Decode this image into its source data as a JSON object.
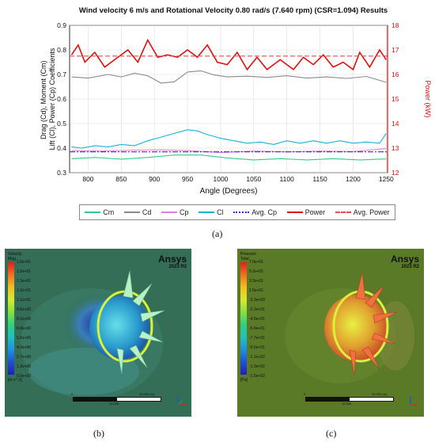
{
  "chart_data": {
    "type": "line",
    "title": "Wind velocity 6 m/s and  Rotational Velocity 0.80 rad/s (7.640 rpm) (CSR=1.094) Results",
    "xlabel": "Angle (Degrees)",
    "ylabel_left": "Drag (Cd), Moment (Cm)\nLift (Cl), Power (Cp) Coefficients",
    "ylabel_right": "Power (kW)",
    "xlim": [
      772,
      1252
    ],
    "ylim_left": [
      0.3,
      0.9
    ],
    "ylim_right": [
      12,
      18
    ],
    "x_ticks": [
      800,
      850,
      900,
      950,
      1000,
      1050,
      1100,
      1150,
      1200,
      1250
    ],
    "y_ticks_left": [
      0.3,
      0.4,
      0.5,
      0.6,
      0.7,
      0.8,
      0.9
    ],
    "y_ticks_right": [
      12,
      13,
      14,
      15,
      16,
      17,
      18
    ],
    "grid": true,
    "legend_position": "bottom",
    "series": [
      {
        "name": "Cm",
        "axis": "left",
        "color": "#2ecc8f",
        "style": "solid",
        "x": [
          775,
          810,
          850,
          890,
          930,
          970,
          1010,
          1050,
          1090,
          1130,
          1170,
          1210,
          1250
        ],
        "y": [
          0.357,
          0.362,
          0.355,
          0.362,
          0.372,
          0.372,
          0.36,
          0.352,
          0.357,
          0.352,
          0.357,
          0.352,
          0.356
        ]
      },
      {
        "name": "Cd",
        "axis": "left",
        "color": "#8a8a8a",
        "style": "solid",
        "x": [
          775,
          800,
          830,
          850,
          870,
          890,
          910,
          930,
          950,
          970,
          990,
          1010,
          1040,
          1070,
          1100,
          1130,
          1160,
          1190,
          1220,
          1250
        ],
        "y": [
          0.69,
          0.685,
          0.7,
          0.69,
          0.705,
          0.695,
          0.665,
          0.67,
          0.71,
          0.715,
          0.698,
          0.69,
          0.693,
          0.688,
          0.695,
          0.685,
          0.69,
          0.684,
          0.692,
          0.668
        ]
      },
      {
        "name": "Cp",
        "axis": "left",
        "color": "#e081e0",
        "style": "solid",
        "x": [
          775,
          820,
          870,
          910,
          950,
          1000,
          1050,
          1100,
          1150,
          1200,
          1250
        ],
        "y": [
          0.39,
          0.388,
          0.392,
          0.393,
          0.39,
          0.382,
          0.388,
          0.385,
          0.388,
          0.386,
          0.398
        ]
      },
      {
        "name": "Cl",
        "axis": "left",
        "color": "#17b3d6",
        "style": "solid",
        "x": [
          775,
          790,
          810,
          830,
          850,
          870,
          890,
          910,
          930,
          950,
          965,
          980,
          1000,
          1020,
          1040,
          1060,
          1080,
          1100,
          1120,
          1140,
          1160,
          1180,
          1200,
          1220,
          1240,
          1250
        ],
        "y": [
          0.405,
          0.4,
          0.41,
          0.405,
          0.415,
          0.41,
          0.43,
          0.445,
          0.46,
          0.475,
          0.47,
          0.455,
          0.44,
          0.43,
          0.42,
          0.425,
          0.415,
          0.43,
          0.42,
          0.43,
          0.42,
          0.43,
          0.42,
          0.425,
          0.42,
          0.46
        ]
      },
      {
        "name": "Avg. Cp",
        "axis": "left",
        "color": "#3a2ad0",
        "style": "dashdot",
        "x": [
          772,
          1252
        ],
        "y": [
          0.385,
          0.385
        ]
      },
      {
        "name": "Power",
        "axis": "right",
        "color": "#e01010",
        "style": "solid",
        "x": [
          775,
          785,
          795,
          810,
          825,
          840,
          860,
          875,
          890,
          905,
          920,
          935,
          950,
          965,
          980,
          995,
          1010,
          1025,
          1040,
          1055,
          1070,
          1090,
          1110,
          1125,
          1140,
          1155,
          1170,
          1185,
          1200,
          1210,
          1225,
          1240,
          1250
        ],
        "y": [
          16.8,
          17.2,
          16.5,
          16.9,
          16.3,
          16.6,
          17.0,
          16.5,
          17.4,
          16.7,
          16.8,
          16.7,
          17.0,
          16.7,
          17.2,
          16.5,
          16.4,
          16.9,
          16.2,
          16.7,
          16.2,
          16.6,
          16.2,
          16.7,
          16.4,
          16.8,
          16.3,
          16.5,
          16.2,
          16.9,
          16.3,
          17.0,
          16.6
        ]
      },
      {
        "name": "Avg. Power",
        "axis": "right",
        "color": "#e05050",
        "style": "dashed",
        "x": [
          772,
          1252
        ],
        "y": [
          16.75,
          16.75
        ]
      }
    ]
  },
  "captions": {
    "a": "(a)",
    "b": "(b)",
    "c": "(c)"
  },
  "panel_b": {
    "legend_title": "Velocity\nMag.",
    "levels": [
      "1.6e+01",
      "1.5e+01",
      "1.3e+01",
      "1.2e+01",
      "1.1e+01",
      "9.6e+00",
      "8.2e+00",
      "6.8e+00",
      "5.5e+00",
      "4.0e+00",
      "2.7e+00",
      "1.3e+00",
      "0.0e+00"
    ],
    "unit": "[m s^-1]",
    "brand": "Ansys",
    "version": "2023 R2",
    "scale": [
      "0",
      "20.000 (m)",
      "10.000"
    ]
  },
  "panel_c": {
    "legend_title": "Pressure\nTotal",
    "levels": [
      "7.0e+01",
      "5.2e+01",
      "3.3e+01",
      "1.5e+01",
      "-3.3e+00",
      "-2.2e+01",
      "-4.0e+01",
      "-5.9e+01",
      "-7.7e+01",
      "-9.5e+01",
      "-1.1e+02",
      "-1.3e+02",
      "-1.5e+02"
    ],
    "unit": "[Pa]",
    "brand": "Ansys",
    "version": "2023 R2",
    "scale": [
      "0",
      "20.000 (m)",
      "10.000"
    ]
  }
}
